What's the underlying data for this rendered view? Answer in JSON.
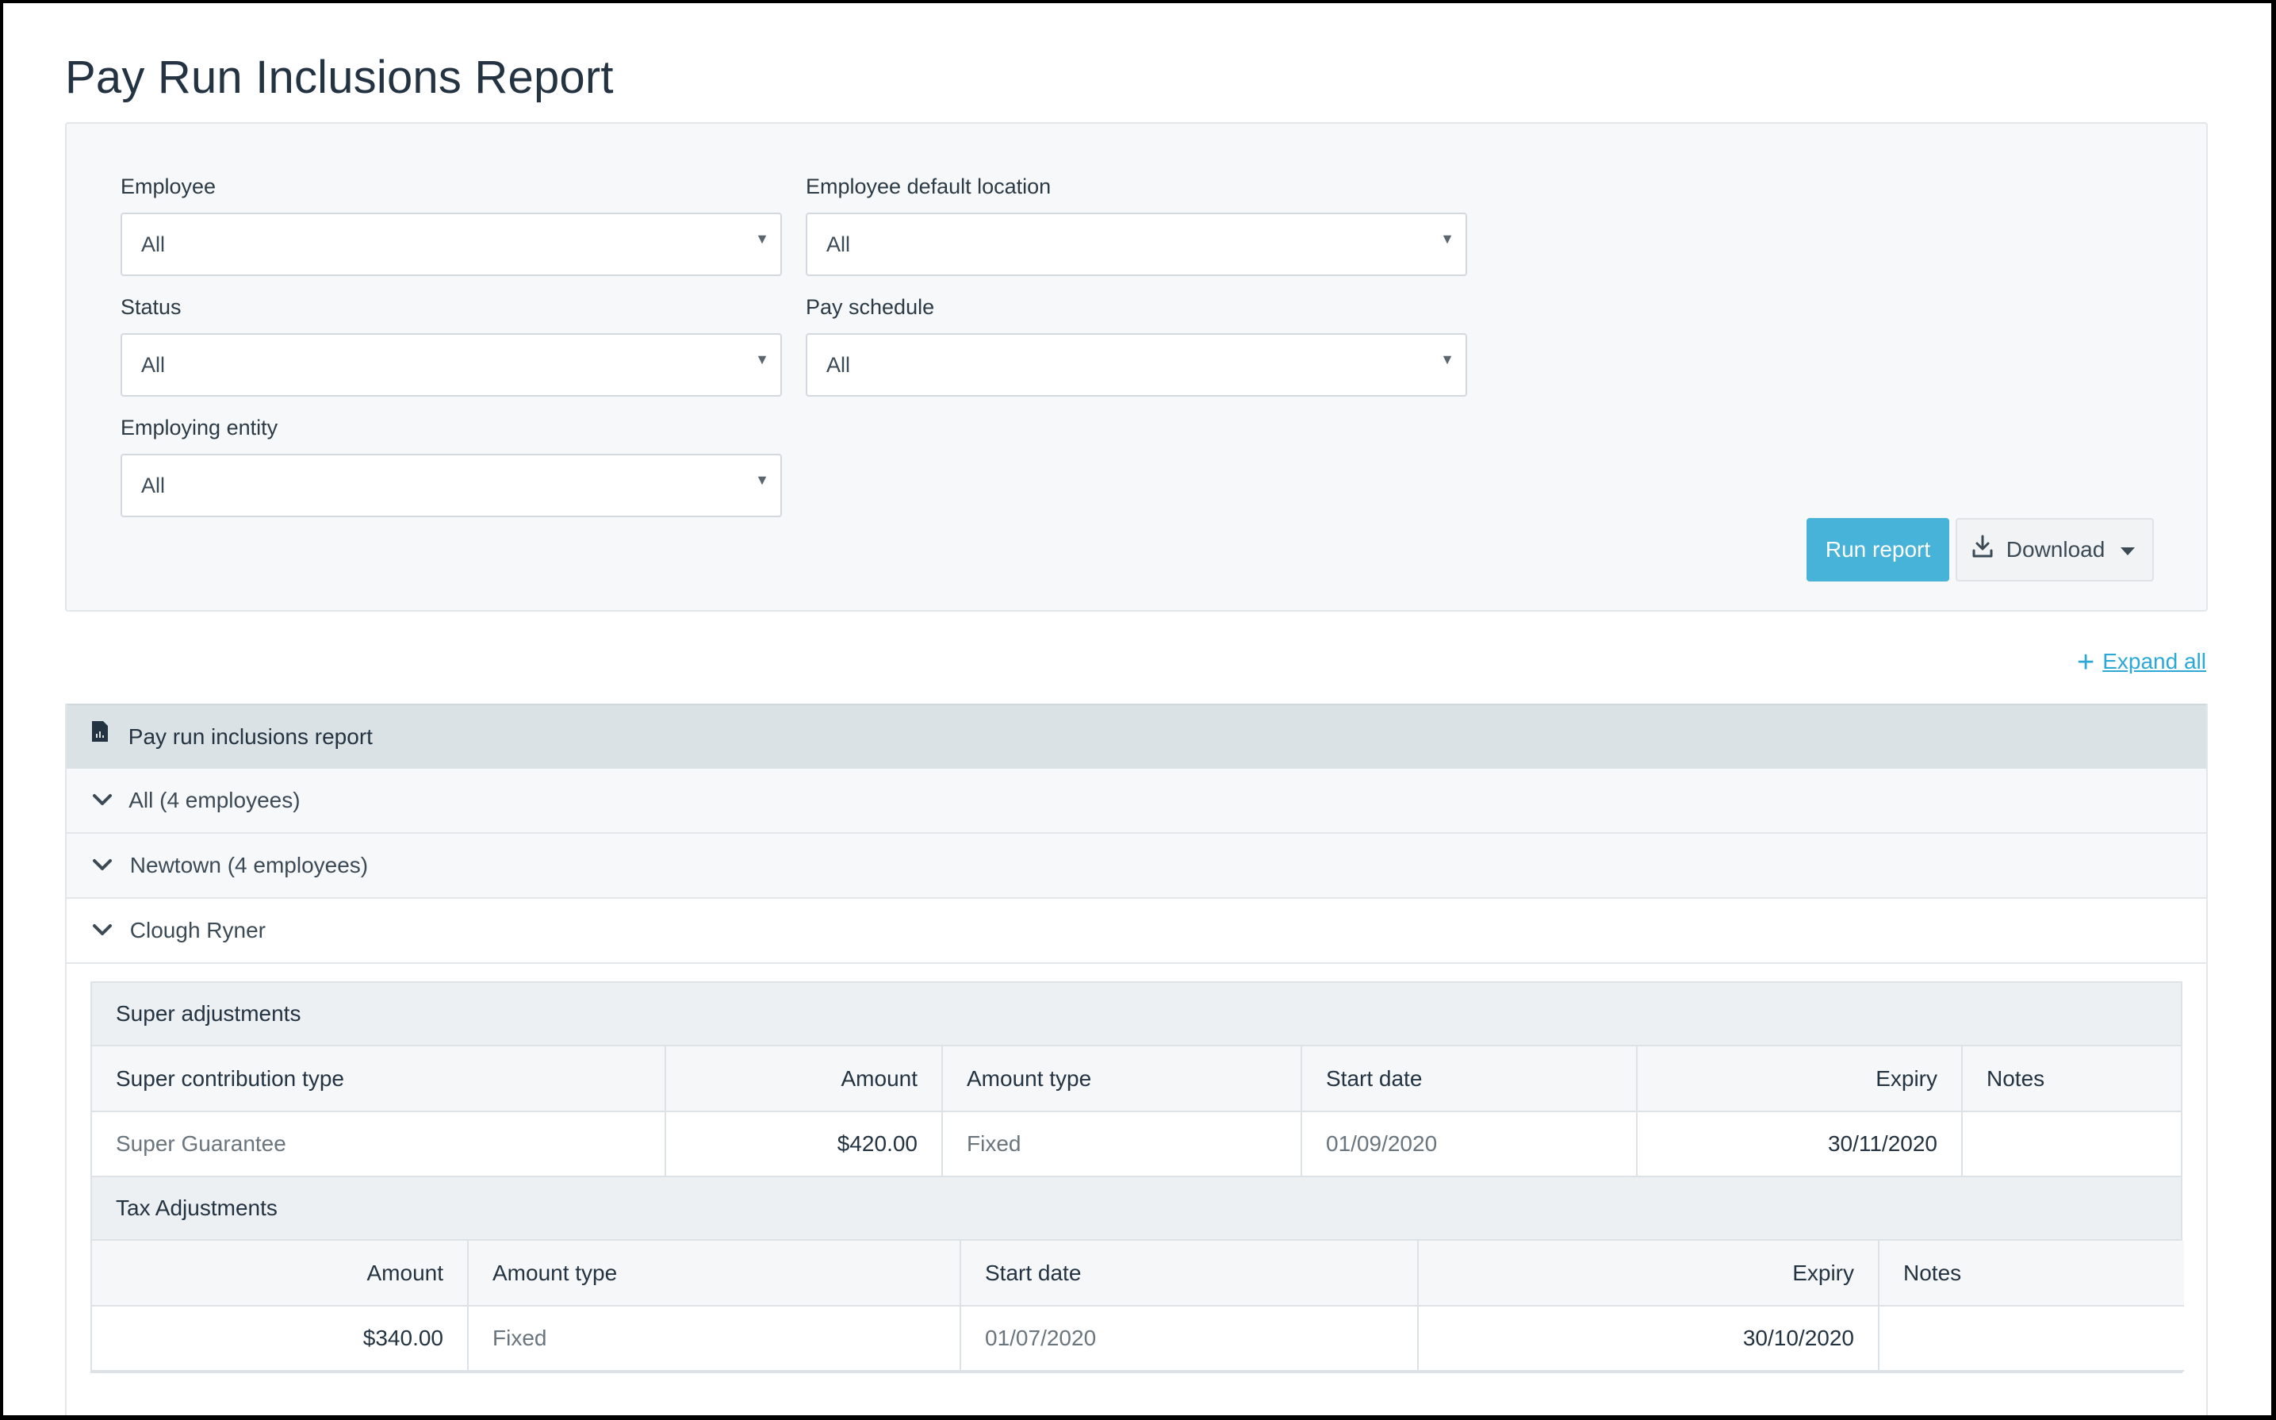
{
  "page": {
    "title": "Pay Run Inclusions Report"
  },
  "filters": {
    "employee": {
      "label": "Employee",
      "value": "All"
    },
    "location": {
      "label": "Employee default location",
      "value": "All"
    },
    "status": {
      "label": "Status",
      "value": "All"
    },
    "pay_schedule": {
      "label": "Pay schedule",
      "value": "All"
    },
    "employing_entity": {
      "label": "Employing entity",
      "value": "All"
    }
  },
  "actions": {
    "run_label": "Run report",
    "download_label": "Download"
  },
  "expand_all_label": "Expand all",
  "report": {
    "header": "Pay run inclusions report",
    "groups": [
      {
        "label": "All (4 employees)"
      },
      {
        "label": "Newtown (4 employees)"
      },
      {
        "label": "Clough Ryner"
      }
    ]
  },
  "super_adjustments": {
    "title": "Super adjustments",
    "columns": [
      "Super contribution type",
      "Amount",
      "Amount type",
      "Start date",
      "Expiry",
      "Notes"
    ],
    "rows": [
      {
        "type": "Super Guarantee",
        "amount": "$420.00",
        "amount_type": "Fixed",
        "start_date": "01/09/2020",
        "expiry": "30/11/2020",
        "notes": ""
      }
    ]
  },
  "tax_adjustments": {
    "title": "Tax Adjustments",
    "columns": [
      "Amount",
      "Amount type",
      "Start date",
      "Expiry",
      "Notes"
    ],
    "rows": [
      {
        "amount": "$340.00",
        "amount_type": "Fixed",
        "start_date": "01/07/2020",
        "expiry": "30/10/2020",
        "notes": ""
      }
    ]
  }
}
